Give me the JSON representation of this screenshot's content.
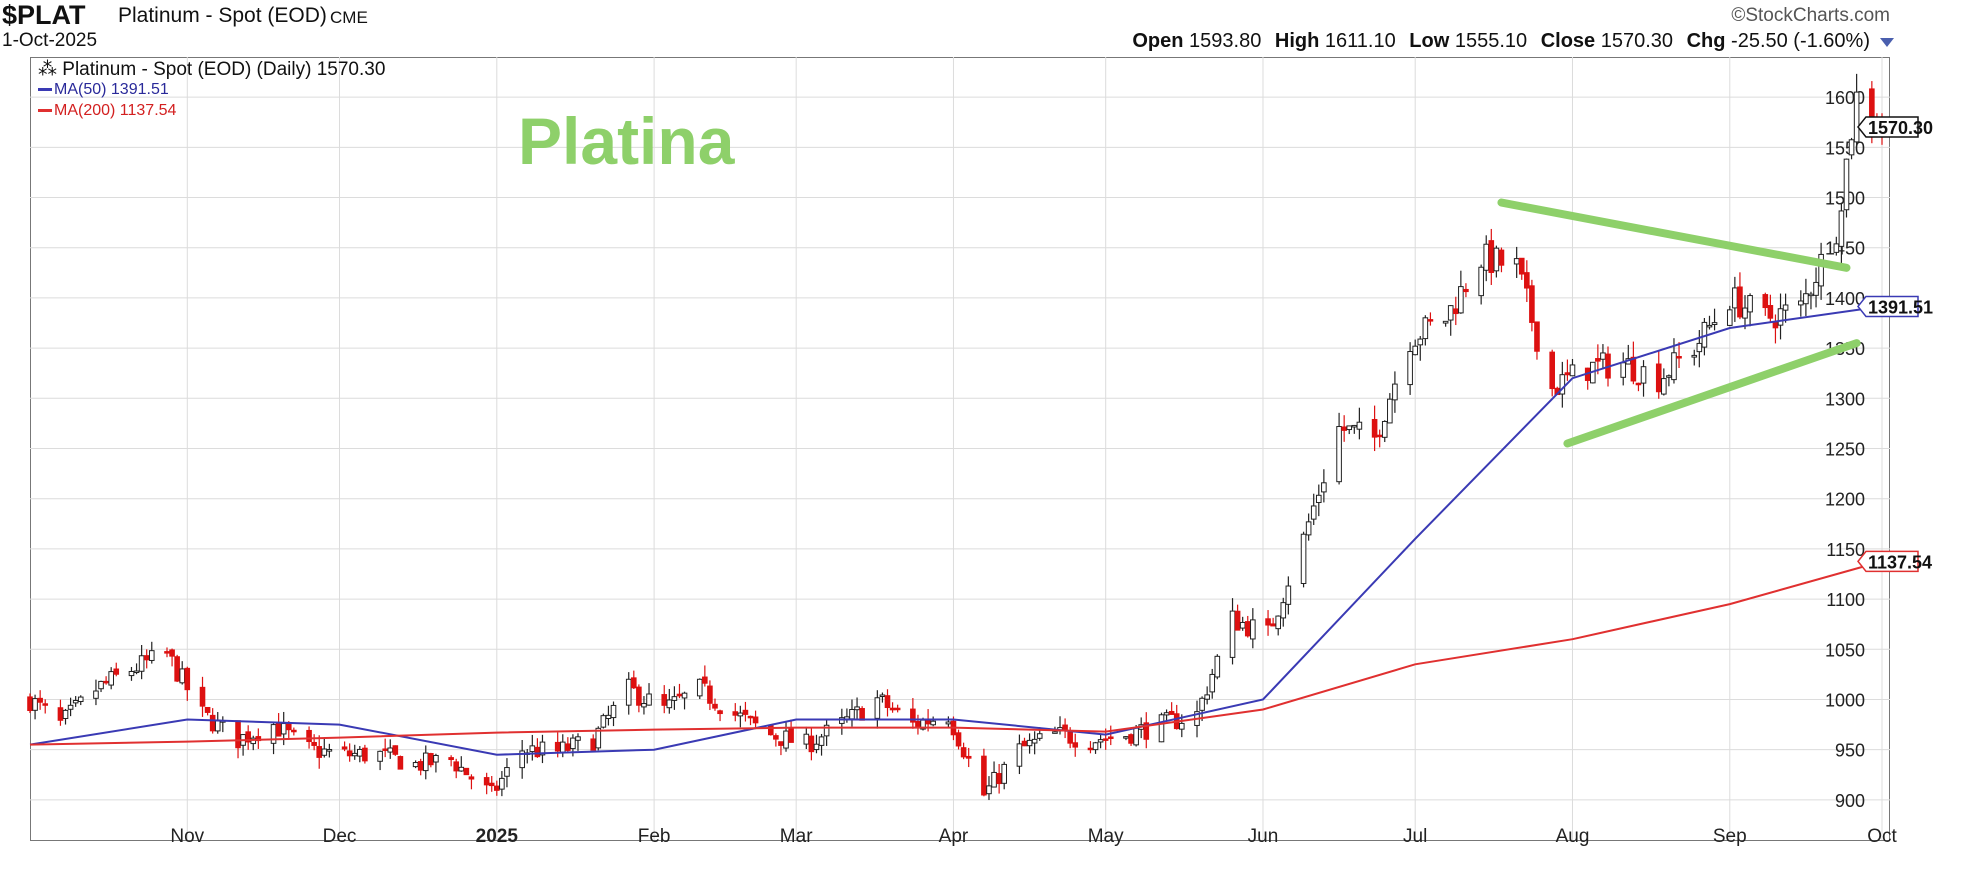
{
  "header": {
    "symbol": "$PLAT",
    "description": "Platinum - Spot (EOD)",
    "exchange": "CME",
    "date": "1-Oct-2025",
    "source": "©StockCharts.com",
    "ohlc": {
      "open_label": "Open",
      "open": "1593.80",
      "high_label": "High",
      "high": "1611.10",
      "low_label": "Low",
      "low": "1555.10",
      "close_label": "Close",
      "close": "1570.30",
      "chg_label": "Chg",
      "chg": "-25.50 (-1.60%)"
    }
  },
  "legend": {
    "main": "Platinum - Spot (EOD) (Daily) 1570.30",
    "ma50": "MA(50) 1391.51",
    "ma200": "MA(200) 1137.54"
  },
  "annotation": "Platina",
  "colors": {
    "up": "#222222",
    "down": "#dd1111",
    "ma50": "#3a3ab4",
    "ma200": "#e03030",
    "annotation": "#8ed06a",
    "grid": "#dcdcdc"
  },
  "chart_data": {
    "type": "candlestick",
    "title": "Platinum - Spot (EOD) (Daily) 1570.30",
    "ylim": [
      860,
      1640
    ],
    "y_ticks": [
      900,
      950,
      1000,
      1050,
      1100,
      1150,
      1200,
      1250,
      1300,
      1350,
      1400,
      1450,
      1500,
      1550,
      1600
    ],
    "x_labels": [
      {
        "label": "Nov",
        "date": "2024-11-01",
        "bold": false
      },
      {
        "label": "Dec",
        "date": "2024-12-01",
        "bold": false
      },
      {
        "label": "2025",
        "date": "2025-01-01",
        "bold": true
      },
      {
        "label": "Feb",
        "date": "2025-02-01",
        "bold": false
      },
      {
        "label": "Mar",
        "date": "2025-03-01",
        "bold": false
      },
      {
        "label": "Apr",
        "date": "2025-04-01",
        "bold": false
      },
      {
        "label": "May",
        "date": "2025-05-01",
        "bold": false
      },
      {
        "label": "Jun",
        "date": "2025-06-01",
        "bold": false
      },
      {
        "label": "Jul",
        "date": "2025-07-01",
        "bold": false
      },
      {
        "label": "Aug",
        "date": "2025-08-01",
        "bold": false
      },
      {
        "label": "Sep",
        "date": "2025-09-01",
        "bold": false
      },
      {
        "label": "Oct",
        "date": "2025-10-01",
        "bold": false
      }
    ],
    "close_series": [
      [
        "2024-10-01",
        1000
      ],
      [
        "2024-10-07",
        975
      ],
      [
        "2024-10-14",
        1010
      ],
      [
        "2024-10-21",
        1030
      ],
      [
        "2024-10-28",
        1045
      ],
      [
        "2024-11-04",
        985
      ],
      [
        "2024-11-11",
        960
      ],
      [
        "2024-11-18",
        975
      ],
      [
        "2024-11-25",
        950
      ],
      [
        "2024-12-02",
        945
      ],
      [
        "2024-12-09",
        945
      ],
      [
        "2024-12-16",
        935
      ],
      [
        "2024-12-23",
        940
      ],
      [
        "2024-12-31",
        905
      ],
      [
        "2025-01-06",
        950
      ],
      [
        "2025-01-13",
        948
      ],
      [
        "2025-01-20",
        960
      ],
      [
        "2025-01-27",
        1010
      ],
      [
        "2025-02-03",
        990
      ],
      [
        "2025-02-10",
        1010
      ],
      [
        "2025-02-17",
        985
      ],
      [
        "2025-02-24",
        965
      ],
      [
        "2025-03-03",
        955
      ],
      [
        "2025-03-10",
        975
      ],
      [
        "2025-03-17",
        1000
      ],
      [
        "2025-03-24",
        975
      ],
      [
        "2025-03-31",
        985
      ],
      [
        "2025-04-07",
        905
      ],
      [
        "2025-04-14",
        950
      ],
      [
        "2025-04-21",
        965
      ],
      [
        "2025-04-28",
        960
      ],
      [
        "2025-05-05",
        965
      ],
      [
        "2025-05-12",
        975
      ],
      [
        "2025-05-19",
        985
      ],
      [
        "2025-05-26",
        1080
      ],
      [
        "2025-06-02",
        1065
      ],
      [
        "2025-06-09",
        1160
      ],
      [
        "2025-06-16",
        1270
      ],
      [
        "2025-06-23",
        1260
      ],
      [
        "2025-06-30",
        1360
      ],
      [
        "2025-07-07",
        1380
      ],
      [
        "2025-07-14",
        1440
      ],
      [
        "2025-07-21",
        1430
      ],
      [
        "2025-07-28",
        1310
      ],
      [
        "2025-08-04",
        1330
      ],
      [
        "2025-08-11",
        1335
      ],
      [
        "2025-08-18",
        1320
      ],
      [
        "2025-08-25",
        1350
      ],
      [
        "2025-09-01",
        1400
      ],
      [
        "2025-09-08",
        1380
      ],
      [
        "2025-09-15",
        1390
      ],
      [
        "2025-09-22",
        1470
      ],
      [
        "2025-09-26",
        1600
      ],
      [
        "2025-10-01",
        1570.3
      ]
    ],
    "series": [
      {
        "name": "MA(50) 1391.51",
        "color": "#3a3ab4",
        "points": [
          [
            "2024-10-01",
            955
          ],
          [
            "2024-11-01",
            980
          ],
          [
            "2024-12-01",
            975
          ],
          [
            "2025-01-01",
            945
          ],
          [
            "2025-02-01",
            950
          ],
          [
            "2025-03-01",
            980
          ],
          [
            "2025-04-01",
            980
          ],
          [
            "2025-05-01",
            965
          ],
          [
            "2025-06-01",
            1000
          ],
          [
            "2025-07-01",
            1160
          ],
          [
            "2025-08-01",
            1320
          ],
          [
            "2025-09-01",
            1370
          ],
          [
            "2025-10-01",
            1391.51
          ]
        ]
      },
      {
        "name": "MA(200) 1137.54",
        "color": "#e03030",
        "points": [
          [
            "2024-10-01",
            955
          ],
          [
            "2024-11-01",
            958
          ],
          [
            "2024-12-01",
            962
          ],
          [
            "2025-01-01",
            967
          ],
          [
            "2025-02-01",
            970
          ],
          [
            "2025-03-01",
            972
          ],
          [
            "2025-04-01",
            972
          ],
          [
            "2025-05-01",
            968
          ],
          [
            "2025-06-01",
            990
          ],
          [
            "2025-07-01",
            1035
          ],
          [
            "2025-08-01",
            1060
          ],
          [
            "2025-09-01",
            1095
          ],
          [
            "2025-10-01",
            1137.54
          ]
        ]
      }
    ],
    "trendlines": [
      {
        "from": [
          "2025-07-18",
          1495
        ],
        "to": [
          "2025-09-24",
          1430
        ]
      },
      {
        "from": [
          "2025-07-31",
          1255
        ],
        "to": [
          "2025-09-26",
          1355
        ]
      }
    ],
    "price_tags": [
      {
        "label": "1570.30",
        "value": 1570.3,
        "color": "#111111"
      },
      {
        "label": "1391.51",
        "value": 1391.51,
        "color": "#3a3ab4"
      },
      {
        "label": "1137.54",
        "value": 1137.54,
        "color": "#e03030"
      }
    ]
  }
}
